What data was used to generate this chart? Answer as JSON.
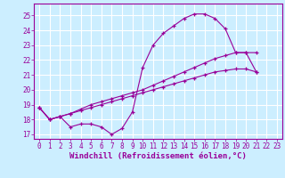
{
  "xlabel": "Windchill (Refroidissement éolien,°C)",
  "background_color": "#cceeff",
  "grid_color": "#ffffff",
  "line_color": "#990099",
  "xlim": [
    -0.5,
    23.5
  ],
  "ylim": [
    16.7,
    25.8
  ],
  "xticks": [
    0,
    1,
    2,
    3,
    4,
    5,
    6,
    7,
    8,
    9,
    10,
    11,
    12,
    13,
    14,
    15,
    16,
    17,
    18,
    19,
    20,
    21,
    22,
    23
  ],
  "yticks": [
    17,
    18,
    19,
    20,
    21,
    22,
    23,
    24,
    25
  ],
  "s1": [
    18.8,
    18.0,
    18.2,
    17.5,
    17.7,
    17.7,
    17.5,
    17.0,
    17.4,
    18.5,
    21.5,
    23.0,
    23.8,
    24.3,
    24.8,
    25.1,
    25.1,
    24.8,
    24.1,
    22.5,
    22.5,
    21.2,
    null,
    null
  ],
  "s2": [
    18.8,
    18.0,
    18.2,
    18.4,
    18.6,
    18.8,
    19.0,
    19.2,
    19.4,
    19.6,
    19.8,
    20.0,
    20.2,
    20.4,
    20.6,
    20.8,
    21.0,
    21.2,
    21.3,
    21.4,
    21.4,
    21.2,
    null,
    null
  ],
  "s3": [
    18.8,
    18.0,
    18.2,
    18.4,
    18.7,
    19.0,
    19.2,
    19.4,
    19.6,
    19.8,
    20.0,
    20.3,
    20.6,
    20.9,
    21.2,
    21.5,
    21.8,
    22.1,
    22.3,
    22.5,
    22.5,
    22.5,
    null,
    null
  ],
  "tick_fontsize": 5.5,
  "xlabel_fontsize": 6.5
}
